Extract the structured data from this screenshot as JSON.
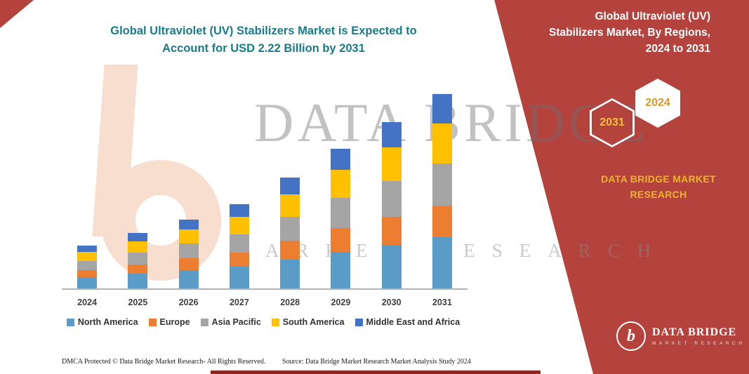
{
  "title": {
    "line1": "Global Ultraviolet (UV) Stabilizers Market is Expected to",
    "line2": "Account for USD 2.22 Billion by 2031"
  },
  "watermark": {
    "line1": "DATA BRIDGE",
    "line2": "MARKET RESEARCH"
  },
  "panel": {
    "heading_lines": {
      "0": "Global Ultraviolet (UV)",
      "1": "Stabilizers Market, By Regions,",
      "2": "2024 to 2031"
    },
    "badge_back": "2031",
    "badge_front": "2024",
    "brand_line1": "DATA BRIDGE MARKET",
    "brand_line2": "RESEARCH",
    "panel_color": "#B4433E",
    "accent_text_color": "#EDB22C"
  },
  "logo": {
    "mark": "b",
    "title": "DATA BRIDGE",
    "sub": "MARKET RESEARCH"
  },
  "footer": {
    "dmca": "DMCA Protected © Data Bridge Market Research-  All Rights Reserved.",
    "source": "Source: Data Bridge Market Research  Market Analysis Study 2024"
  },
  "colors": {
    "title_teal": "#187A8A",
    "watermark_peach": "#F8DECE"
  },
  "chart_data": {
    "type": "bar",
    "stacked": true,
    "title": "Global Ultraviolet (UV) Stabilizers Market is Expected to Account for USD 2.22 Billion by 2031",
    "xlabel": "",
    "ylabel": "",
    "grid": false,
    "legend_position": "bottom",
    "values_unit": "relative height (y-axis unlabeled in source image)",
    "categories": [
      "2024",
      "2025",
      "2026",
      "2027",
      "2028",
      "2029",
      "2030",
      "2031"
    ],
    "series": [
      {
        "name": "North America",
        "color": "#5B9BC7",
        "values": [
          16,
          21,
          26,
          31,
          41,
          52,
          62,
          73
        ]
      },
      {
        "name": "Europe",
        "color": "#ED7D31",
        "values": [
          10,
          13,
          17,
          20,
          27,
          34,
          40,
          45
        ]
      },
      {
        "name": "Asia Pacific",
        "color": "#A5A5A5",
        "values": [
          13,
          17,
          21,
          26,
          34,
          43,
          51,
          60
        ]
      },
      {
        "name": "South America",
        "color": "#FFC000",
        "values": [
          13,
          16,
          20,
          25,
          32,
          40,
          48,
          57
        ]
      },
      {
        "name": "Middle East and Africa",
        "color": "#4472C4",
        "values": [
          9,
          12,
          14,
          18,
          24,
          30,
          36,
          42
        ]
      }
    ]
  }
}
